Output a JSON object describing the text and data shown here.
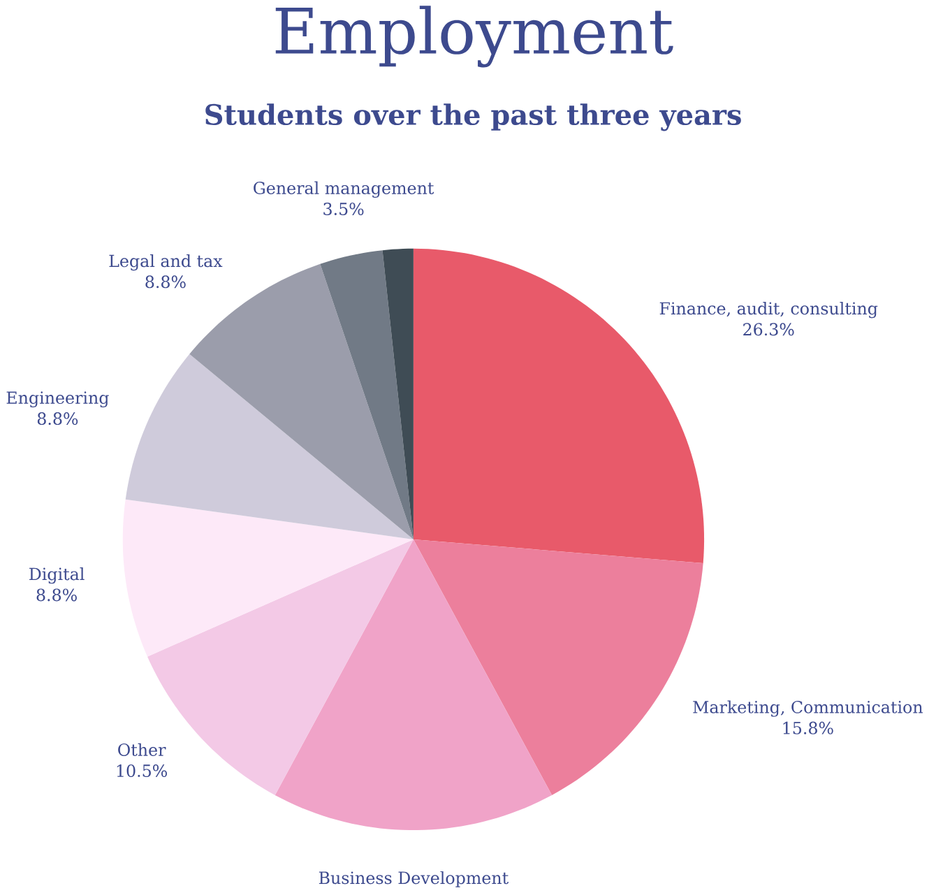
{
  "chart_data": {
    "type": "pie",
    "title": "Employment",
    "subtitle": "Students over the past three years",
    "categories": [
      "Finance, audit, consulting",
      "Marketing, Communication",
      "Business Development",
      "Other",
      "Digital",
      "Engineering",
      "Legal and tax",
      "General management",
      null
    ],
    "values": [
      26.3,
      15.8,
      15.8,
      10.5,
      8.8,
      8.8,
      8.8,
      3.5,
      1.7
    ],
    "colors": [
      "#e85a6a",
      "#ec7f9c",
      "#f0a3c8",
      "#f3c9e6",
      "#fde9f8",
      "#cfcbdb",
      "#9b9dab",
      "#717a86",
      "#3f4c55"
    ],
    "value_labels": [
      "26.3%",
      "15.8%",
      null,
      "10.5%",
      "8.8%",
      "8.8%",
      "8.8%",
      "3.5%",
      null
    ]
  }
}
